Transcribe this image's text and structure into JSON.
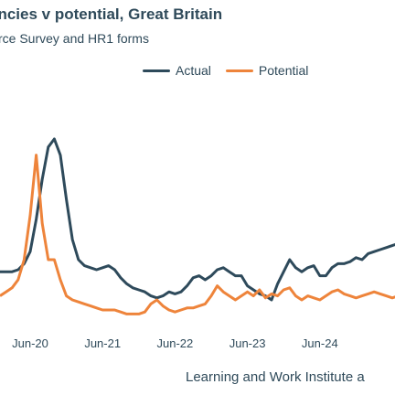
{
  "chart_data": {
    "type": "line",
    "title": "ancies v potential, Great Britain",
    "subtitle": "rce Survey and HR1 forms",
    "source": "Learning and Work Institute a",
    "x_tick_labels": [
      "Jun-20",
      "Jun-21",
      "Jun-22",
      "Jun-23",
      "Jun-24"
    ],
    "x_unit": "month",
    "xlim": [
      0,
      68
    ],
    "ylim": [
      0,
      100
    ],
    "grid": false,
    "legend_position": "top-right",
    "series": [
      {
        "name": "Actual",
        "color": "#2e4a5b",
        "values": [
          [
            0,
            24
          ],
          [
            1,
            24
          ],
          [
            2,
            24
          ],
          [
            3,
            25
          ],
          [
            4,
            28
          ],
          [
            5,
            34
          ],
          [
            6,
            50
          ],
          [
            7,
            70
          ],
          [
            8,
            86
          ],
          [
            9,
            90
          ],
          [
            10,
            82
          ],
          [
            11,
            60
          ],
          [
            12,
            40
          ],
          [
            13,
            30
          ],
          [
            14,
            27
          ],
          [
            15,
            26
          ],
          [
            16,
            25
          ],
          [
            17,
            26
          ],
          [
            18,
            27
          ],
          [
            19,
            25
          ],
          [
            20,
            21
          ],
          [
            21,
            18
          ],
          [
            22,
            16
          ],
          [
            23,
            15
          ],
          [
            24,
            14
          ],
          [
            25,
            12
          ],
          [
            26,
            11
          ],
          [
            27,
            12
          ],
          [
            28,
            14
          ],
          [
            29,
            13
          ],
          [
            30,
            14
          ],
          [
            31,
            17
          ],
          [
            32,
            21
          ],
          [
            33,
            22
          ],
          [
            34,
            20
          ],
          [
            35,
            22
          ],
          [
            36,
            25
          ],
          [
            37,
            26
          ],
          [
            38,
            24
          ],
          [
            39,
            22
          ],
          [
            40,
            22
          ],
          [
            41,
            17
          ],
          [
            42,
            15
          ],
          [
            43,
            13
          ],
          [
            44,
            12
          ],
          [
            45,
            10
          ],
          [
            46,
            18
          ],
          [
            47,
            24
          ],
          [
            48,
            30
          ],
          [
            49,
            26
          ],
          [
            50,
            24
          ],
          [
            51,
            26
          ],
          [
            52,
            27
          ],
          [
            53,
            22
          ],
          [
            54,
            22
          ],
          [
            55,
            26
          ],
          [
            56,
            28
          ],
          [
            57,
            28
          ],
          [
            58,
            29
          ],
          [
            59,
            31
          ],
          [
            60,
            30
          ],
          [
            61,
            33
          ],
          [
            62,
            34
          ],
          [
            63,
            35
          ],
          [
            64,
            36
          ],
          [
            65,
            37
          ],
          [
            66,
            38
          ],
          [
            67,
            40
          ],
          [
            68,
            41
          ]
        ]
      },
      {
        "name": "Potential",
        "color": "#ee843b",
        "values": [
          [
            0,
            12
          ],
          [
            1,
            14
          ],
          [
            2,
            16
          ],
          [
            3,
            20
          ],
          [
            4,
            30
          ],
          [
            5,
            52
          ],
          [
            6,
            82
          ],
          [
            7,
            48
          ],
          [
            8,
            30
          ],
          [
            9,
            30
          ],
          [
            10,
            20
          ],
          [
            11,
            12
          ],
          [
            12,
            10
          ],
          [
            13,
            9
          ],
          [
            14,
            8
          ],
          [
            15,
            7
          ],
          [
            16,
            6
          ],
          [
            17,
            5
          ],
          [
            18,
            5
          ],
          [
            19,
            5
          ],
          [
            20,
            4
          ],
          [
            21,
            3
          ],
          [
            22,
            3
          ],
          [
            23,
            3
          ],
          [
            24,
            4
          ],
          [
            25,
            8
          ],
          [
            26,
            10
          ],
          [
            27,
            7
          ],
          [
            28,
            5
          ],
          [
            29,
            4
          ],
          [
            30,
            5
          ],
          [
            31,
            6
          ],
          [
            32,
            6
          ],
          [
            33,
            7
          ],
          [
            34,
            8
          ],
          [
            35,
            12
          ],
          [
            36,
            17
          ],
          [
            37,
            14
          ],
          [
            38,
            12
          ],
          [
            39,
            10
          ],
          [
            40,
            12
          ],
          [
            41,
            14
          ],
          [
            42,
            12
          ],
          [
            43,
            15
          ],
          [
            44,
            11
          ],
          [
            45,
            13
          ],
          [
            46,
            12
          ],
          [
            47,
            15
          ],
          [
            48,
            16
          ],
          [
            49,
            12
          ],
          [
            50,
            10
          ],
          [
            51,
            12
          ],
          [
            52,
            11
          ],
          [
            53,
            10
          ],
          [
            54,
            12
          ],
          [
            55,
            14
          ],
          [
            56,
            15
          ],
          [
            57,
            13
          ],
          [
            58,
            12
          ],
          [
            59,
            11
          ],
          [
            60,
            12
          ],
          [
            61,
            13
          ],
          [
            62,
            14
          ],
          [
            63,
            13
          ],
          [
            64,
            12
          ],
          [
            65,
            11
          ],
          [
            66,
            12
          ],
          [
            67,
            13
          ],
          [
            68,
            13
          ]
        ]
      }
    ]
  }
}
